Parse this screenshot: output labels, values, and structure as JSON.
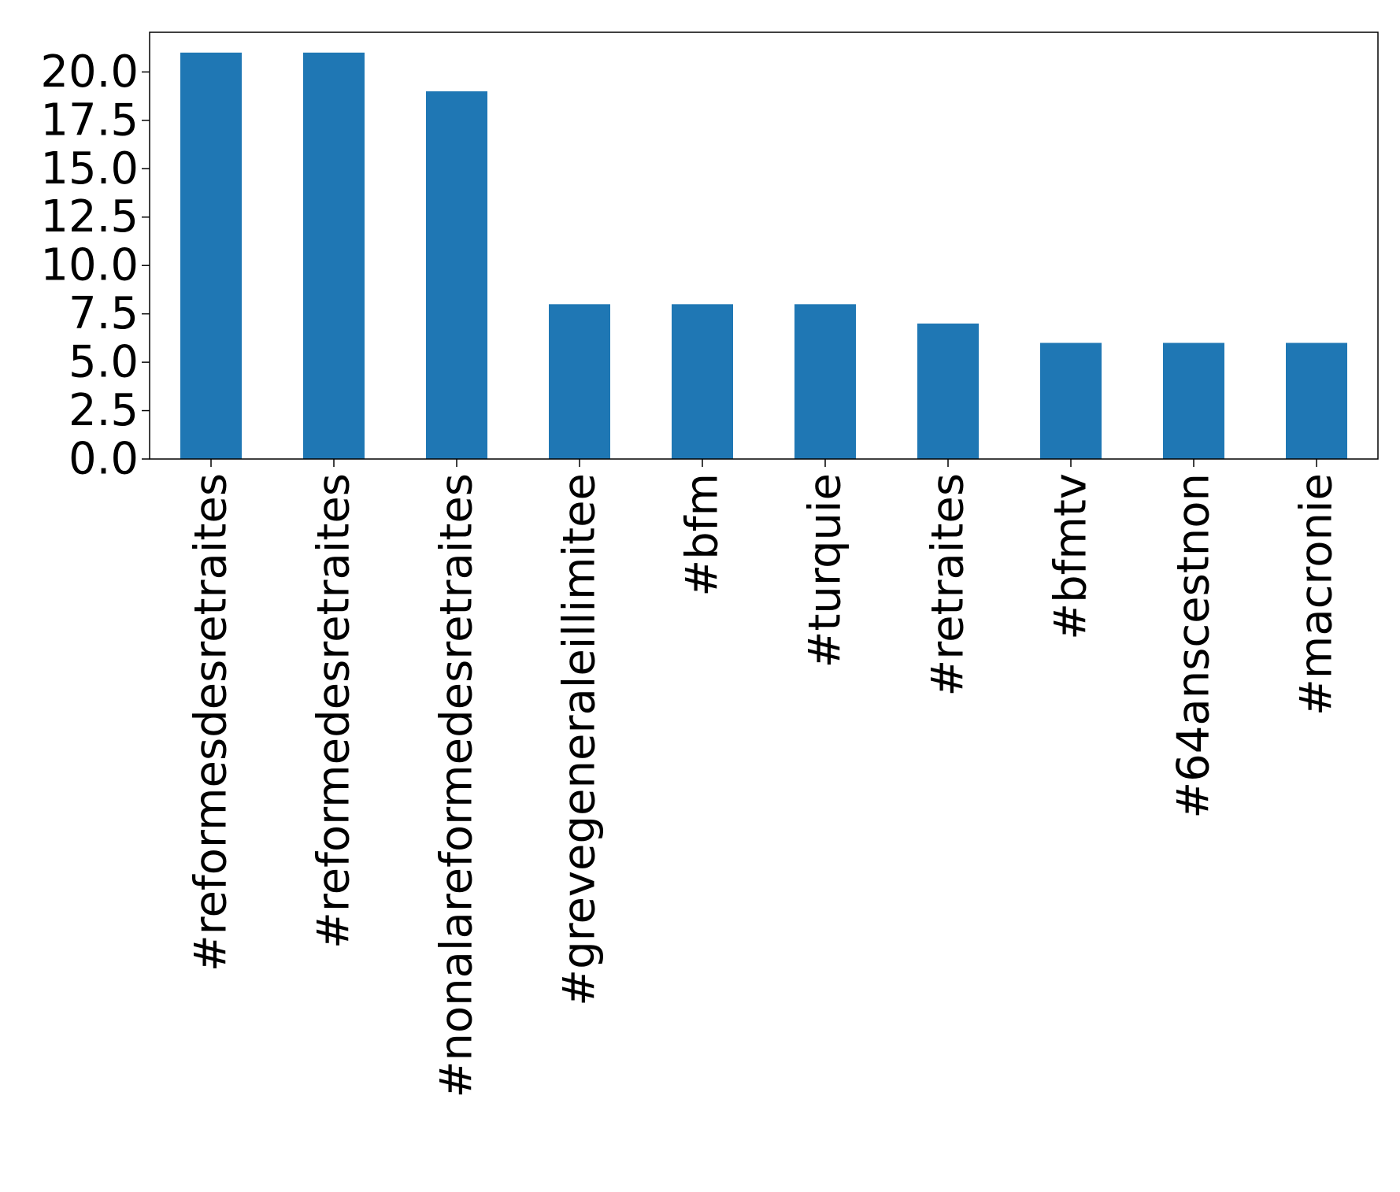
{
  "chart_data": {
    "type": "bar",
    "categories": [
      "#reformesdesretraites",
      "#reformedesretraites",
      "#nonalareformedesretraites",
      "#grevegeneraleillimitee",
      "#bfm",
      "#turquie",
      "#retraites",
      "#bfmtv",
      "#64anscestnon",
      "#macronie"
    ],
    "values": [
      21,
      21,
      19,
      8,
      8,
      8,
      7,
      6,
      6,
      6
    ],
    "title": "",
    "xlabel": "",
    "ylabel": "",
    "ylim": [
      0,
      22.05
    ],
    "yticks": [
      "0.0",
      "2.5",
      "5.0",
      "7.5",
      "10.0",
      "12.5",
      "15.0",
      "17.5",
      "20.0"
    ],
    "grid": false,
    "bar_color": "#1f77b4"
  }
}
